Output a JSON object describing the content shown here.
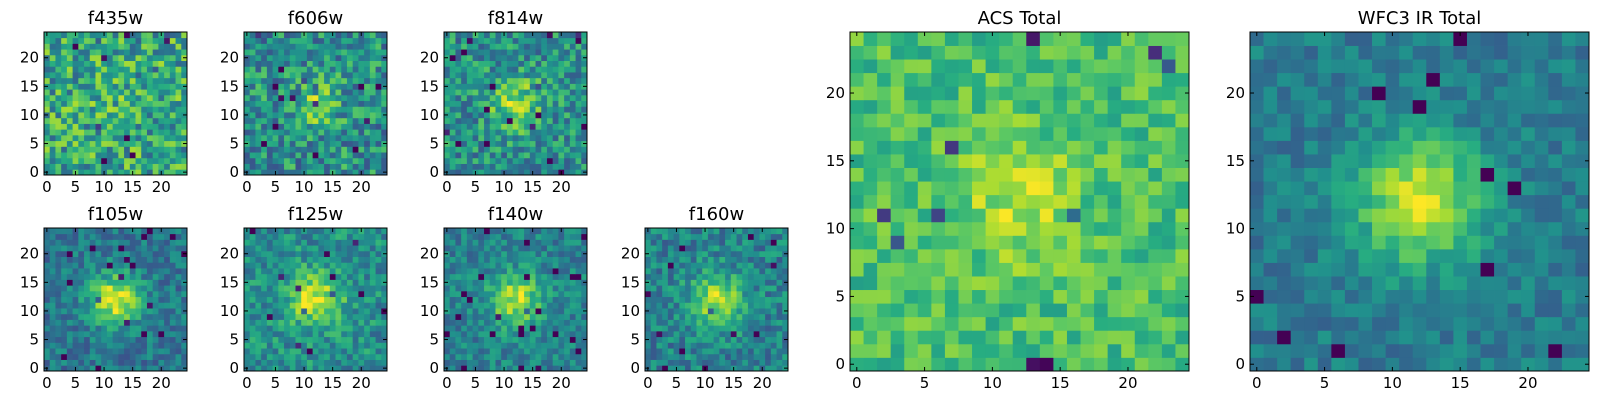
{
  "chart_data": [
    {
      "type": "heatmap",
      "title": "f435w",
      "grid": [
        25,
        25
      ],
      "xlim": [
        0,
        25
      ],
      "ylim": [
        0,
        25
      ],
      "xticks": [
        "0",
        "5",
        "10",
        "15",
        "20"
      ],
      "yticks": [
        "0",
        "5",
        "10",
        "15",
        "20"
      ],
      "colormap": "viridis",
      "blob_strength": 0.05,
      "noise": 0.55,
      "seed": 11,
      "base": 0.6
    },
    {
      "type": "heatmap",
      "title": "f606w",
      "grid": [
        25,
        25
      ],
      "xlim": [
        0,
        25
      ],
      "ylim": [
        0,
        25
      ],
      "xticks": [
        "0",
        "5",
        "10",
        "15",
        "20"
      ],
      "yticks": [
        "0",
        "5",
        "10",
        "15",
        "20"
      ],
      "colormap": "viridis",
      "blob_strength": 0.25,
      "noise": 0.5,
      "seed": 23,
      "base": 0.5
    },
    {
      "type": "heatmap",
      "title": "f814w",
      "grid": [
        25,
        25
      ],
      "xlim": [
        0,
        25
      ],
      "ylim": [
        0,
        25
      ],
      "xticks": [
        "0",
        "5",
        "10",
        "15",
        "20"
      ],
      "yticks": [
        "0",
        "5",
        "10",
        "15",
        "20"
      ],
      "colormap": "viridis",
      "blob_strength": 0.35,
      "noise": 0.45,
      "seed": 37,
      "base": 0.5
    },
    {
      "type": "heatmap",
      "title": "f105w",
      "grid": [
        25,
        25
      ],
      "xlim": [
        0,
        25
      ],
      "ylim": [
        0,
        25
      ],
      "xticks": [
        "0",
        "5",
        "10",
        "15",
        "20"
      ],
      "yticks": [
        "0",
        "5",
        "10",
        "15",
        "20"
      ],
      "colormap": "viridis",
      "blob_strength": 0.55,
      "noise": 0.3,
      "seed": 41,
      "base": 0.4
    },
    {
      "type": "heatmap",
      "title": "f125w",
      "grid": [
        25,
        25
      ],
      "xlim": [
        0,
        25
      ],
      "ylim": [
        0,
        25
      ],
      "xticks": [
        "0",
        "5",
        "10",
        "15",
        "20"
      ],
      "yticks": [
        "0",
        "5",
        "10",
        "15",
        "20"
      ],
      "colormap": "viridis",
      "blob_strength": 0.45,
      "noise": 0.35,
      "seed": 53,
      "base": 0.5
    },
    {
      "type": "heatmap",
      "title": "f140w",
      "grid": [
        25,
        25
      ],
      "xlim": [
        0,
        25
      ],
      "ylim": [
        0,
        25
      ],
      "xticks": [
        "0",
        "5",
        "10",
        "15",
        "20"
      ],
      "yticks": [
        "0",
        "5",
        "10",
        "15",
        "20"
      ],
      "colormap": "viridis",
      "blob_strength": 0.45,
      "noise": 0.3,
      "seed": 67,
      "base": 0.45
    },
    {
      "type": "heatmap",
      "title": "f160w",
      "grid": [
        25,
        25
      ],
      "xlim": [
        0,
        25
      ],
      "ylim": [
        0,
        25
      ],
      "xticks": [
        "0",
        "5",
        "10",
        "15",
        "20"
      ],
      "yticks": [
        "0",
        "5",
        "10",
        "15",
        "20"
      ],
      "colormap": "viridis",
      "blob_strength": 0.45,
      "noise": 0.35,
      "seed": 79,
      "base": 0.45
    },
    {
      "type": "heatmap",
      "title": "ACS Total",
      "grid": [
        25,
        25
      ],
      "xlim": [
        0,
        25
      ],
      "ylim": [
        0,
        25
      ],
      "xticks": [
        "0",
        "5",
        "10",
        "15",
        "20"
      ],
      "yticks": [
        "0",
        "5",
        "10",
        "15",
        "20"
      ],
      "colormap": "viridis",
      "blob_strength": 0.2,
      "noise": 0.28,
      "seed": 97,
      "base": 0.7
    },
    {
      "type": "heatmap",
      "title": "WFC3 IR Total",
      "grid": [
        25,
        25
      ],
      "xlim": [
        0,
        25
      ],
      "ylim": [
        0,
        25
      ],
      "xticks": [
        "0",
        "5",
        "10",
        "15",
        "20"
      ],
      "yticks": [
        "0",
        "5",
        "10",
        "15",
        "20"
      ],
      "colormap": "viridis",
      "blob_strength": 0.55,
      "noise": 0.22,
      "seed": 113,
      "base": 0.42
    }
  ]
}
